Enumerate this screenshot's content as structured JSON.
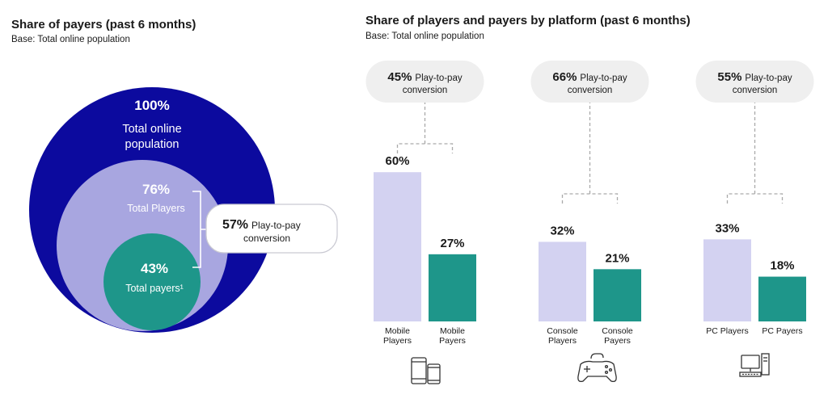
{
  "chart_data": [
    {
      "type": "nested-circles",
      "title": "Share of payers (past 6 months)",
      "subtitle": "Base: Total online population",
      "levels": [
        {
          "name": "Total online population",
          "line1": "Total online",
          "line2": "population",
          "value": 100,
          "label": "100%",
          "color": "#0c0a9e"
        },
        {
          "name": "Total Players",
          "value": 76,
          "label": "76%",
          "color": "#a8a6e0"
        },
        {
          "name": "Total payers",
          "text": "Total payers¹",
          "value": 43,
          "label": "43%",
          "color": "#1e968a"
        }
      ],
      "conversion": {
        "pct": "57%",
        "line1": "Play-to-pay",
        "line2": "conversion",
        "value": 57
      }
    },
    {
      "type": "bar",
      "title": "Share of players and payers by platform (past 6 months)",
      "subtitle": "Base: Total online population",
      "ylim": [
        0,
        70
      ],
      "colors": {
        "players": "#d3d2f1",
        "payers": "#1e968a"
      },
      "groups": [
        {
          "platform": "Mobile",
          "icon": "mobile-devices-icon",
          "conversion": {
            "pct": "45%",
            "line1": "Play-to-pay",
            "line2": "conversion",
            "value": 45
          },
          "bars": [
            {
              "series": "players",
              "value": 60,
              "label": "60%",
              "cat1": "Mobile",
              "cat2": "Players"
            },
            {
              "series": "payers",
              "value": 27,
              "label": "27%",
              "cat1": "Mobile",
              "cat2": "Payers"
            }
          ]
        },
        {
          "platform": "Console",
          "icon": "gamepad-icon",
          "conversion": {
            "pct": "66%",
            "line1": "Play-to-pay",
            "line2": "conversion",
            "value": 66
          },
          "bars": [
            {
              "series": "players",
              "value": 32,
              "label": "32%",
              "cat1": "Console",
              "cat2": "Players"
            },
            {
              "series": "payers",
              "value": 21,
              "label": "21%",
              "cat1": "Console",
              "cat2": "Payers"
            }
          ]
        },
        {
          "platform": "PC",
          "icon": "desktop-pc-icon",
          "conversion": {
            "pct": "55%",
            "line1": "Play-to-pay",
            "line2": "conversion",
            "value": 55
          },
          "bars": [
            {
              "series": "players",
              "value": 33,
              "label": "33%",
              "cat1": "PC Players",
              "cat2": ""
            },
            {
              "series": "payers",
              "value": 18,
              "label": "18%",
              "cat1": "PC Payers",
              "cat2": ""
            }
          ]
        }
      ]
    }
  ]
}
